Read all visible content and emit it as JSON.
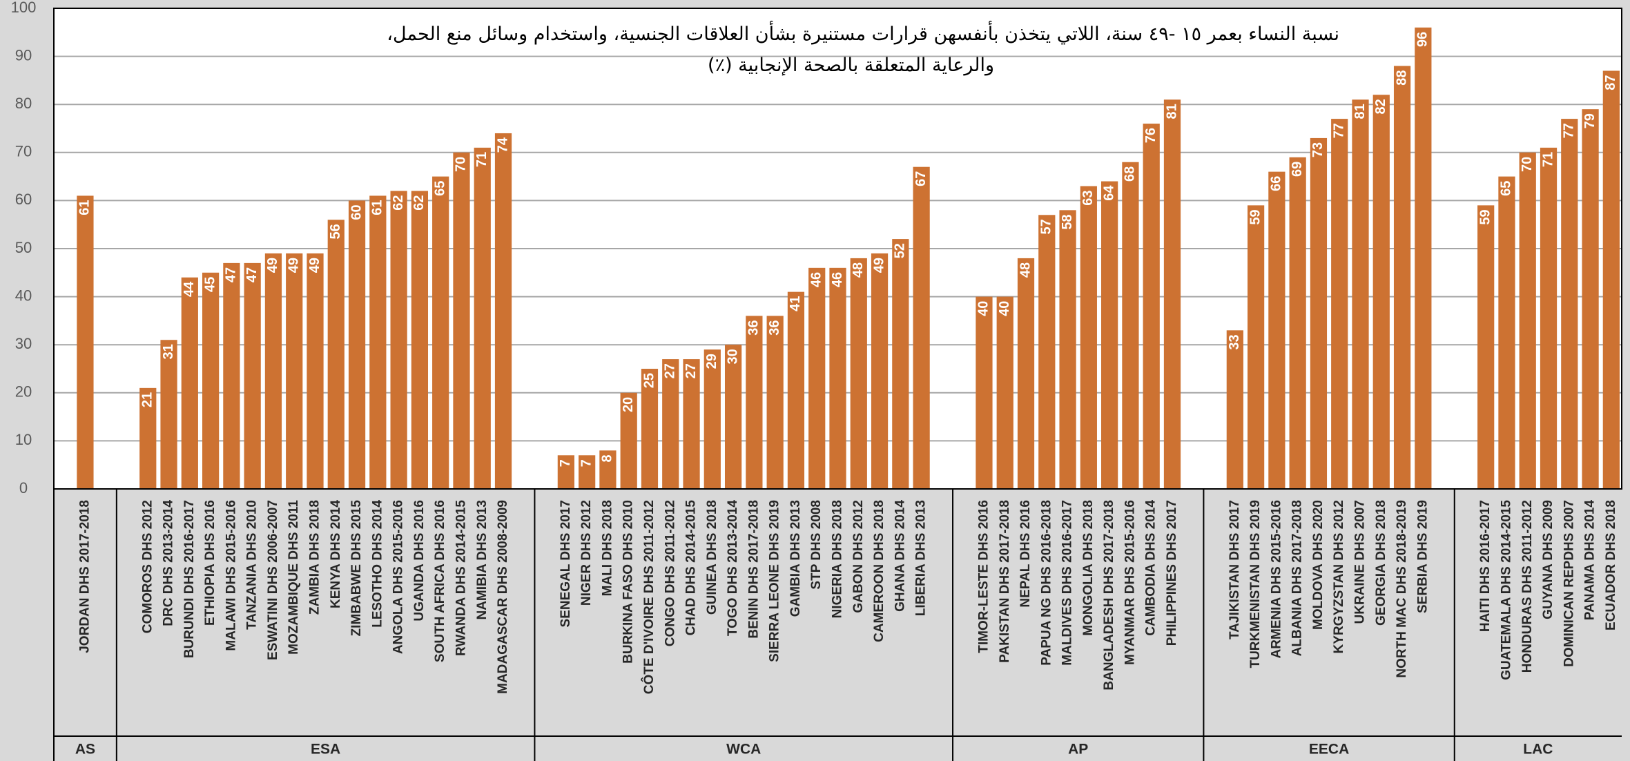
{
  "chart_data": {
    "type": "bar",
    "title": [
      "نسبة النساء بعمر ١٥ -٤٩ سنة، اللاتي يتخذن بأنفسهن قرارات مستنيرة بشأن العلاقات الجنسية، واستخدام وسائل منع الحمل،",
      "والرعاية المتعلقة بالصحة الإنجابية (٪)"
    ],
    "color": "#cd7232",
    "ylim": [
      0,
      100
    ],
    "yticks": [
      0,
      10,
      20,
      30,
      40,
      50,
      60,
      70,
      80,
      90,
      100
    ],
    "grid": true,
    "groups": [
      {
        "name": "AS",
        "categories": [
          null,
          "JORDAN DHS 2017-2018",
          null
        ],
        "values": [
          null,
          61,
          null
        ]
      },
      {
        "name": "ESA",
        "categories": [
          null,
          "COMOROS DHS 2012",
          "DRC DHS 2013-2014",
          "BURUNDI DHS 2016-2017",
          "ETHIOPIA DHS 2016",
          "MALAWI DHS 2015-2016",
          "TANZANIA DHS 2010",
          "ESWATINI DHS 2006-2007",
          "MOZAMBIQUE DHS 2011",
          "ZAMBIA DHS 2018",
          "KENYA DHS 2014",
          "ZIMBABWE DHS 2015",
          "LESOTHO DHS 2014",
          "ANGOLA DHS 2015-2016",
          "UGANDA DHS 2016",
          "SOUTH AFRICA DHS 2016",
          "RWANDA DHS 2014-2015",
          "NAMIBIA DHS 2013",
          "MADAGASCAR DHS 2008-2009",
          null
        ],
        "values": [
          null,
          21,
          31,
          44,
          45,
          47,
          47,
          49,
          49,
          49,
          56,
          60,
          61,
          62,
          62,
          65,
          70,
          71,
          74,
          null
        ]
      },
      {
        "name": "WCA",
        "categories": [
          null,
          "SENEGAL DHS 2017",
          "NIGER DHS 2012",
          "MALI DHS 2018",
          "BURKINA FASO DHS 2010",
          "CÔTE D'IVOIRE DHS 2011-2012",
          "CONGO DHS 2011-2012",
          "CHAD DHS 2014-2015",
          "GUINEA DHS 2018",
          "TOGO DHS 2013-2014",
          "BENIN DHS 2017-2018",
          "SIERRA LEONE DHS 2019",
          "GAMBIA DHS 2013",
          "STP DHS 2008",
          "NIGERIA DHS 2018",
          "GABON DHS 2012",
          "CAMEROON DHS 2018",
          "GHANA DHS 2014",
          "LIBERIA DHS 2013",
          null
        ],
        "values": [
          null,
          7,
          7,
          8,
          20,
          25,
          27,
          27,
          29,
          30,
          36,
          36,
          41,
          46,
          46,
          48,
          49,
          52,
          67,
          null
        ]
      },
      {
        "name": "AP",
        "categories": [
          null,
          "TIMOR-LESTE DHS 2016",
          "PAKISTAN DHS 2017-2018",
          "NEPAL DHS 2016",
          "PAPUA NG DHS 2016-2018",
          "MALDIVES DHS 2016-2017",
          "MONGOLIA DHS 2018",
          "BANGLADESH DHS 2017-2018",
          "MYANMAR DHS 2015-2016",
          "CAMBODIA DHS 2014",
          "PHILIPPINES DHS 2017",
          null
        ],
        "values": [
          null,
          40,
          40,
          48,
          57,
          58,
          63,
          64,
          68,
          76,
          81,
          null
        ]
      },
      {
        "name": "EECA",
        "categories": [
          null,
          "TAJIKISTAN DHS 2017",
          "TURKMENISTAN DHS 2019",
          "ARMENIA DHS 2015-2016",
          "ALBANIA DHS 2017-2018",
          "MOLDOVA DHS 2020",
          "KYRGYZSTAN DHS 2012",
          "UKRAINE DHS 2007",
          "GEORGIA DHS 2018",
          "NORTH MAC DHS 2018-2019",
          "SERBIA DHS 2019",
          null
        ],
        "values": [
          null,
          33,
          59,
          66,
          69,
          73,
          77,
          81,
          82,
          88,
          96,
          null
        ]
      },
      {
        "name": "LAC",
        "categories": [
          null,
          "HAITI DHS 2016-2017",
          "GUATEMALA DHS 2014-2015",
          "HONDURAS DHS 2011-2012",
          "GUYANA DHS 2009",
          "DOMINICAN REPDHS 2007",
          "PANAMA DHS 2014",
          "ECUADOR DHS 2018"
        ],
        "values": [
          null,
          59,
          65,
          70,
          71,
          77,
          79,
          87
        ]
      }
    ]
  }
}
